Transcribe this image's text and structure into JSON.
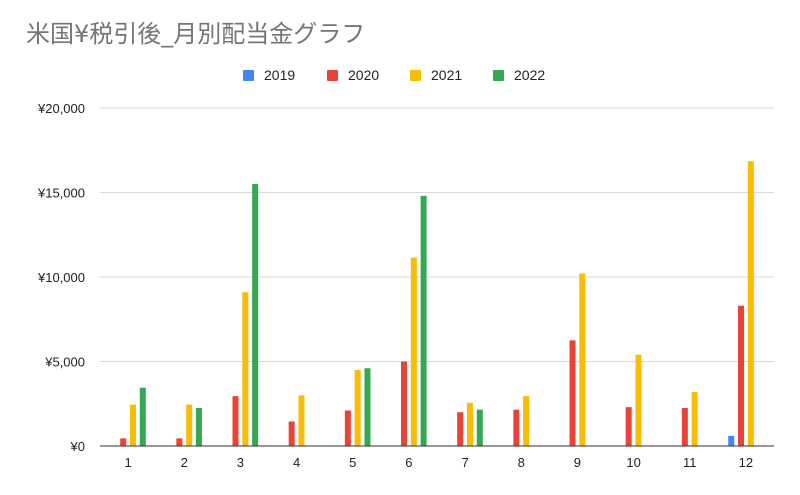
{
  "title": "米国¥税引後_月別配当金グラフ",
  "chart_data": {
    "type": "bar",
    "title": "米国¥税引後_月別配当金グラフ",
    "xlabel": "",
    "ylabel": "",
    "categories": [
      "1",
      "2",
      "3",
      "4",
      "5",
      "6",
      "7",
      "8",
      "9",
      "10",
      "11",
      "12"
    ],
    "y_ticks": [
      "¥0",
      "¥5,000",
      "¥10,000",
      "¥15,000",
      "¥20,000"
    ],
    "ylim": [
      0,
      20000
    ],
    "grid": true,
    "legend_position": "top-center",
    "series": [
      {
        "name": "2019",
        "color": "#4285f4",
        "values": [
          0,
          0,
          0,
          0,
          0,
          0,
          0,
          0,
          0,
          0,
          0,
          600
        ]
      },
      {
        "name": "2020",
        "color": "#ea4335",
        "values": [
          450,
          450,
          2950,
          1450,
          2100,
          5000,
          2000,
          2150,
          6250,
          2300,
          2250,
          8300
        ]
      },
      {
        "name": "2021",
        "color": "#fbbc04",
        "values": [
          2450,
          2450,
          9100,
          3000,
          4500,
          11150,
          2550,
          2950,
          10200,
          5400,
          3200,
          16850
        ]
      },
      {
        "name": "2022",
        "color": "#34a853",
        "values": [
          3450,
          2250,
          15500,
          0,
          4600,
          14800,
          2150,
          0,
          0,
          0,
          0,
          0
        ]
      }
    ]
  }
}
